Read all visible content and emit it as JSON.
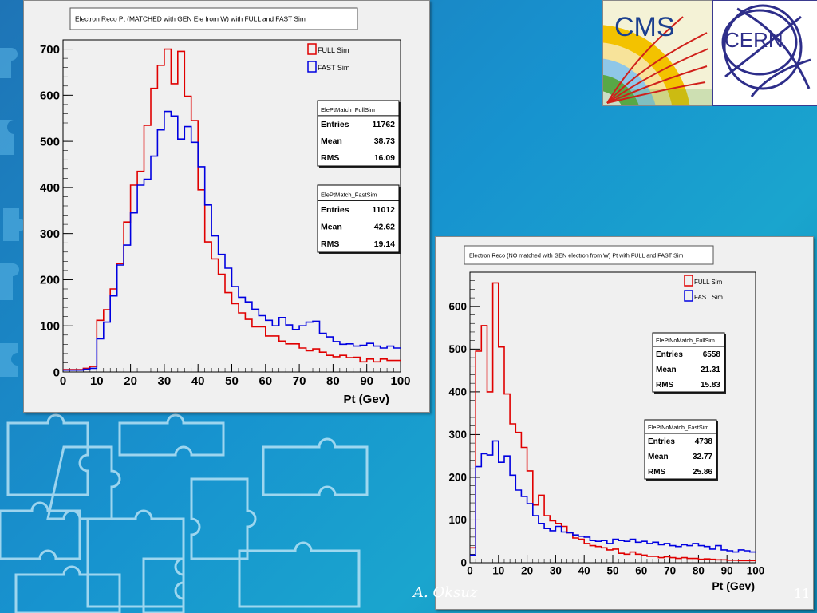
{
  "slide": {
    "author": "A. Oksuz",
    "page_number": "11",
    "logos": {
      "cms_text": "CMS",
      "cern_text": "CERN"
    }
  },
  "chart_data": [
    {
      "type": "line",
      "style": "histogram-step",
      "title": "Electron Reco Pt (MATCHED with GEN Ele from W) with FULL and FAST Sim",
      "xlabel": "Pt (Gev)",
      "ylabel": "",
      "xlim": [
        0,
        100
      ],
      "ylim": [
        0,
        720
      ],
      "xticks": [
        0,
        10,
        20,
        30,
        40,
        50,
        60,
        70,
        80,
        90,
        100
      ],
      "yticks": [
        0,
        100,
        200,
        300,
        400,
        500,
        600,
        700
      ],
      "legend": "top-right",
      "bin_width": 2,
      "series": [
        {
          "name": "FULL Sim",
          "color": "#e00000",
          "values": [
            5,
            5,
            5,
            8,
            12,
            112,
            135,
            180,
            235,
            325,
            405,
            435,
            535,
            615,
            665,
            700,
            625,
            695,
            598,
            545,
            395,
            282,
            245,
            212,
            172,
            148,
            128,
            114,
            98,
            98,
            78,
            78,
            67,
            61,
            61,
            52,
            46,
            50,
            43,
            36,
            33,
            36,
            31,
            32,
            22,
            28,
            22,
            28,
            25,
            25
          ]
        },
        {
          "name": "FAST Sim",
          "color": "#0000e0",
          "values": [
            4,
            4,
            4,
            6,
            8,
            72,
            108,
            165,
            232,
            275,
            345,
            405,
            418,
            468,
            525,
            565,
            555,
            505,
            532,
            498,
            445,
            362,
            295,
            255,
            225,
            185,
            162,
            152,
            136,
            122,
            112,
            100,
            118,
            102,
            92,
            100,
            108,
            110,
            84,
            76,
            66,
            60,
            61,
            56,
            58,
            62,
            56,
            52,
            56,
            52
          ]
        }
      ],
      "stats_boxes": [
        {
          "name": "ElePtMatch_FullSim",
          "rows": [
            {
              "label": "Entries",
              "value": "11762"
            },
            {
              "label": "Mean",
              "value": "38.73"
            },
            {
              "label": "RMS",
              "value": "16.09"
            }
          ]
        },
        {
          "name": "ElePtMatch_FastSim",
          "rows": [
            {
              "label": "Entries",
              "value": "11012"
            },
            {
              "label": "Mean",
              "value": "42.62"
            },
            {
              "label": "RMS",
              "value": "19.14"
            }
          ]
        }
      ]
    },
    {
      "type": "line",
      "style": "histogram-step",
      "title": "Electron Reco (NO matched with GEN electron from W) Pt with FULL and FAST Sim",
      "xlabel": "Pt (Gev)",
      "ylabel": "",
      "xlim": [
        0,
        100
      ],
      "ylim": [
        0,
        680
      ],
      "xticks": [
        0,
        10,
        20,
        30,
        40,
        50,
        60,
        70,
        80,
        90,
        100
      ],
      "yticks": [
        0,
        100,
        200,
        300,
        400,
        500,
        600
      ],
      "legend": "top-right",
      "bin_width": 2,
      "series": [
        {
          "name": "FULL Sim",
          "color": "#e00000",
          "values": [
            35,
            495,
            555,
            400,
            655,
            505,
            395,
            325,
            305,
            270,
            215,
            135,
            158,
            110,
            98,
            92,
            85,
            70,
            58,
            55,
            45,
            40,
            38,
            35,
            30,
            32,
            22,
            20,
            25,
            20,
            18,
            15,
            15,
            12,
            14,
            12,
            10,
            12,
            10,
            10,
            8,
            9,
            8,
            7,
            7,
            6,
            6,
            5,
            5,
            5
          ]
        },
        {
          "name": "FAST Sim",
          "color": "#0000e0",
          "values": [
            18,
            225,
            255,
            252,
            285,
            235,
            250,
            205,
            170,
            155,
            138,
            110,
            92,
            80,
            75,
            85,
            72,
            70,
            65,
            62,
            60,
            52,
            50,
            52,
            45,
            55,
            52,
            50,
            55,
            48,
            50,
            45,
            48,
            42,
            45,
            40,
            38,
            42,
            40,
            45,
            40,
            38,
            32,
            40,
            30,
            28,
            25,
            30,
            28,
            25
          ]
        }
      ],
      "stats_boxes": [
        {
          "name": "ElePtNoMatch_FullSim",
          "rows": [
            {
              "label": "Entries",
              "value": "6558"
            },
            {
              "label": "Mean",
              "value": "21.31"
            },
            {
              "label": "RMS",
              "value": "15.83"
            }
          ]
        },
        {
          "name": "ElePtNoMatch_FastSim",
          "rows": [
            {
              "label": "Entries",
              "value": "4738"
            },
            {
              "label": "Mean",
              "value": "32.77"
            },
            {
              "label": "RMS",
              "value": "25.86"
            }
          ]
        }
      ]
    }
  ]
}
